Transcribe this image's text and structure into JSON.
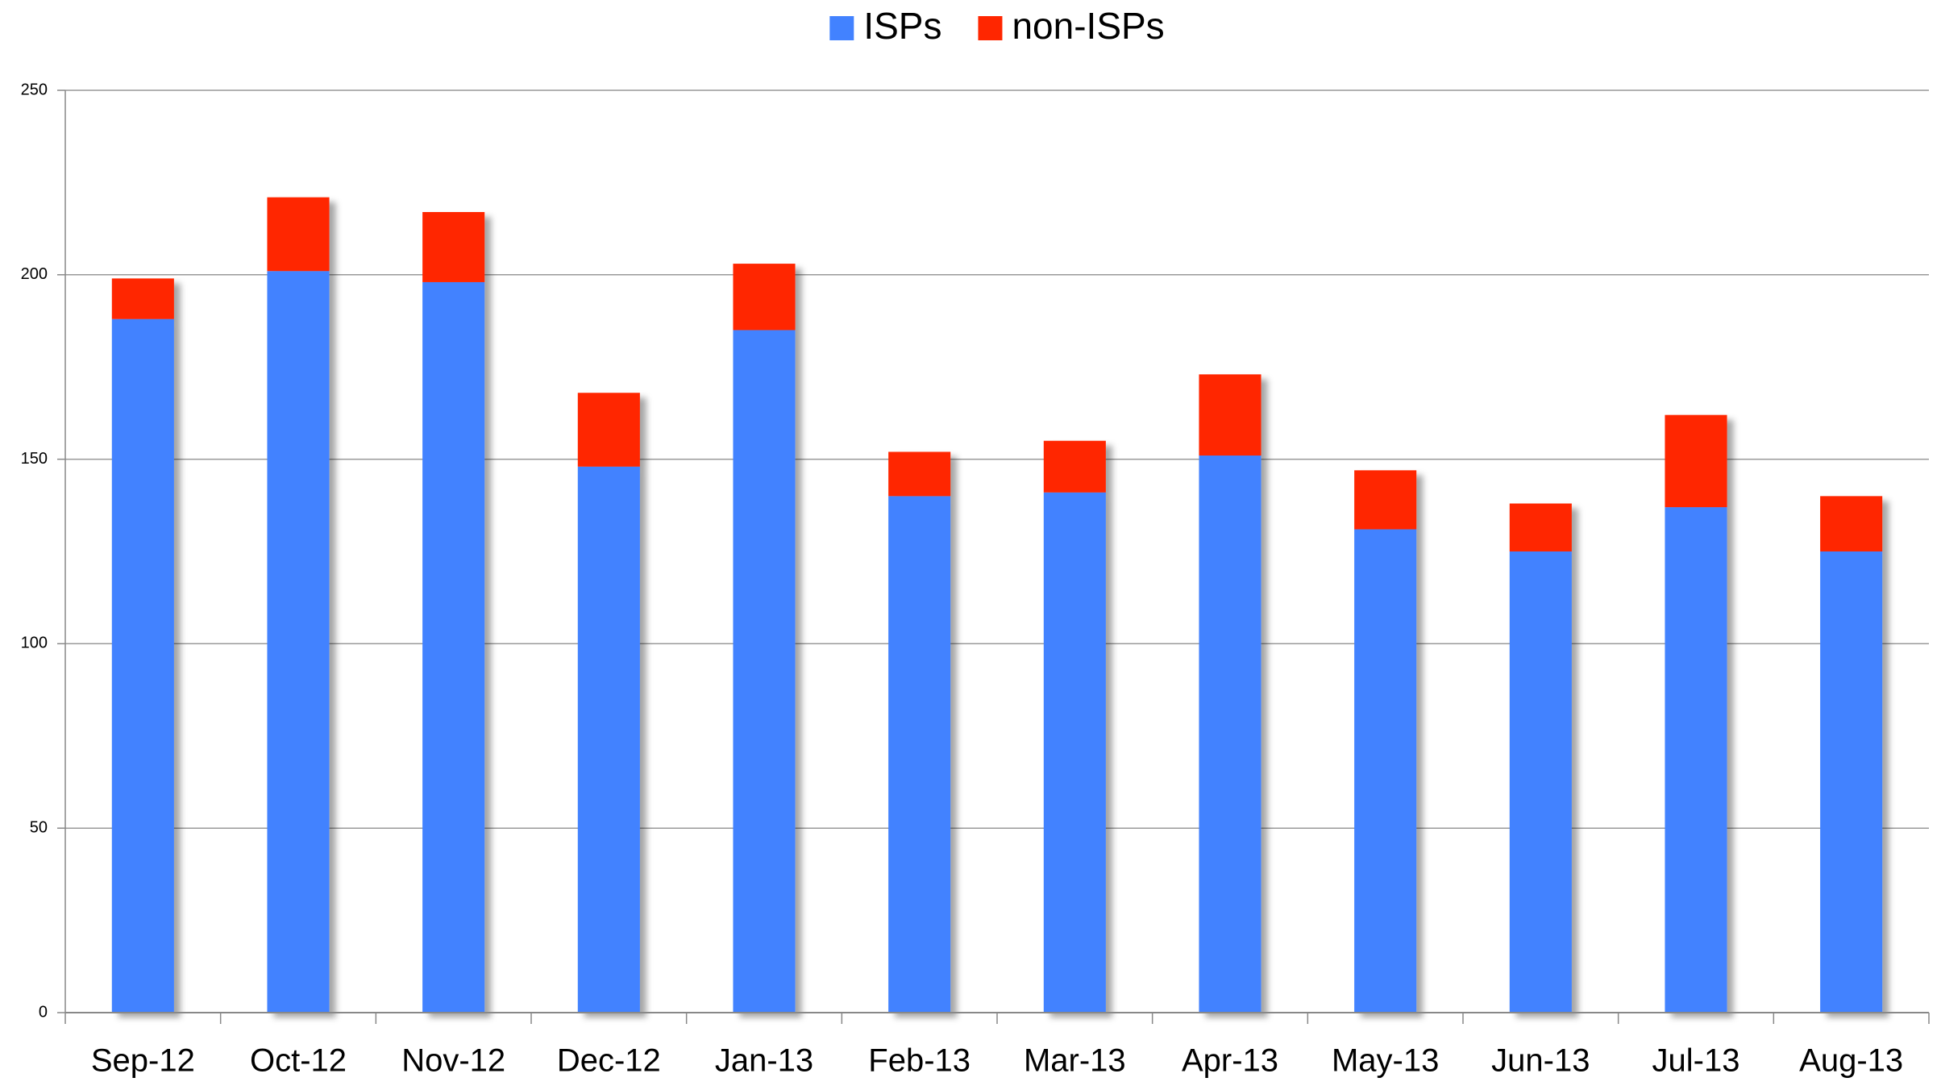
{
  "chart_data": {
    "type": "stacked_bar",
    "categories": [
      "Sep-12",
      "Oct-12",
      "Nov-12",
      "Dec-12",
      "Jan-13",
      "Feb-13",
      "Mar-13",
      "Apr-13",
      "May-13",
      "Jun-13",
      "Jul-13",
      "Aug-13"
    ],
    "series": [
      {
        "name": "ISPs",
        "color": "#4282ff",
        "values": [
          188,
          201,
          198,
          148,
          185,
          140,
          141,
          151,
          131,
          125,
          137,
          125
        ]
      },
      {
        "name": "non-ISPs",
        "color": "#ff2600",
        "values": [
          11,
          20,
          19,
          20,
          18,
          12,
          14,
          22,
          16,
          13,
          25,
          15
        ]
      }
    ],
    "ylim": [
      0,
      250
    ],
    "yticks": [
      0,
      50,
      100,
      150,
      200,
      250
    ],
    "grid": true,
    "legend": "top"
  }
}
